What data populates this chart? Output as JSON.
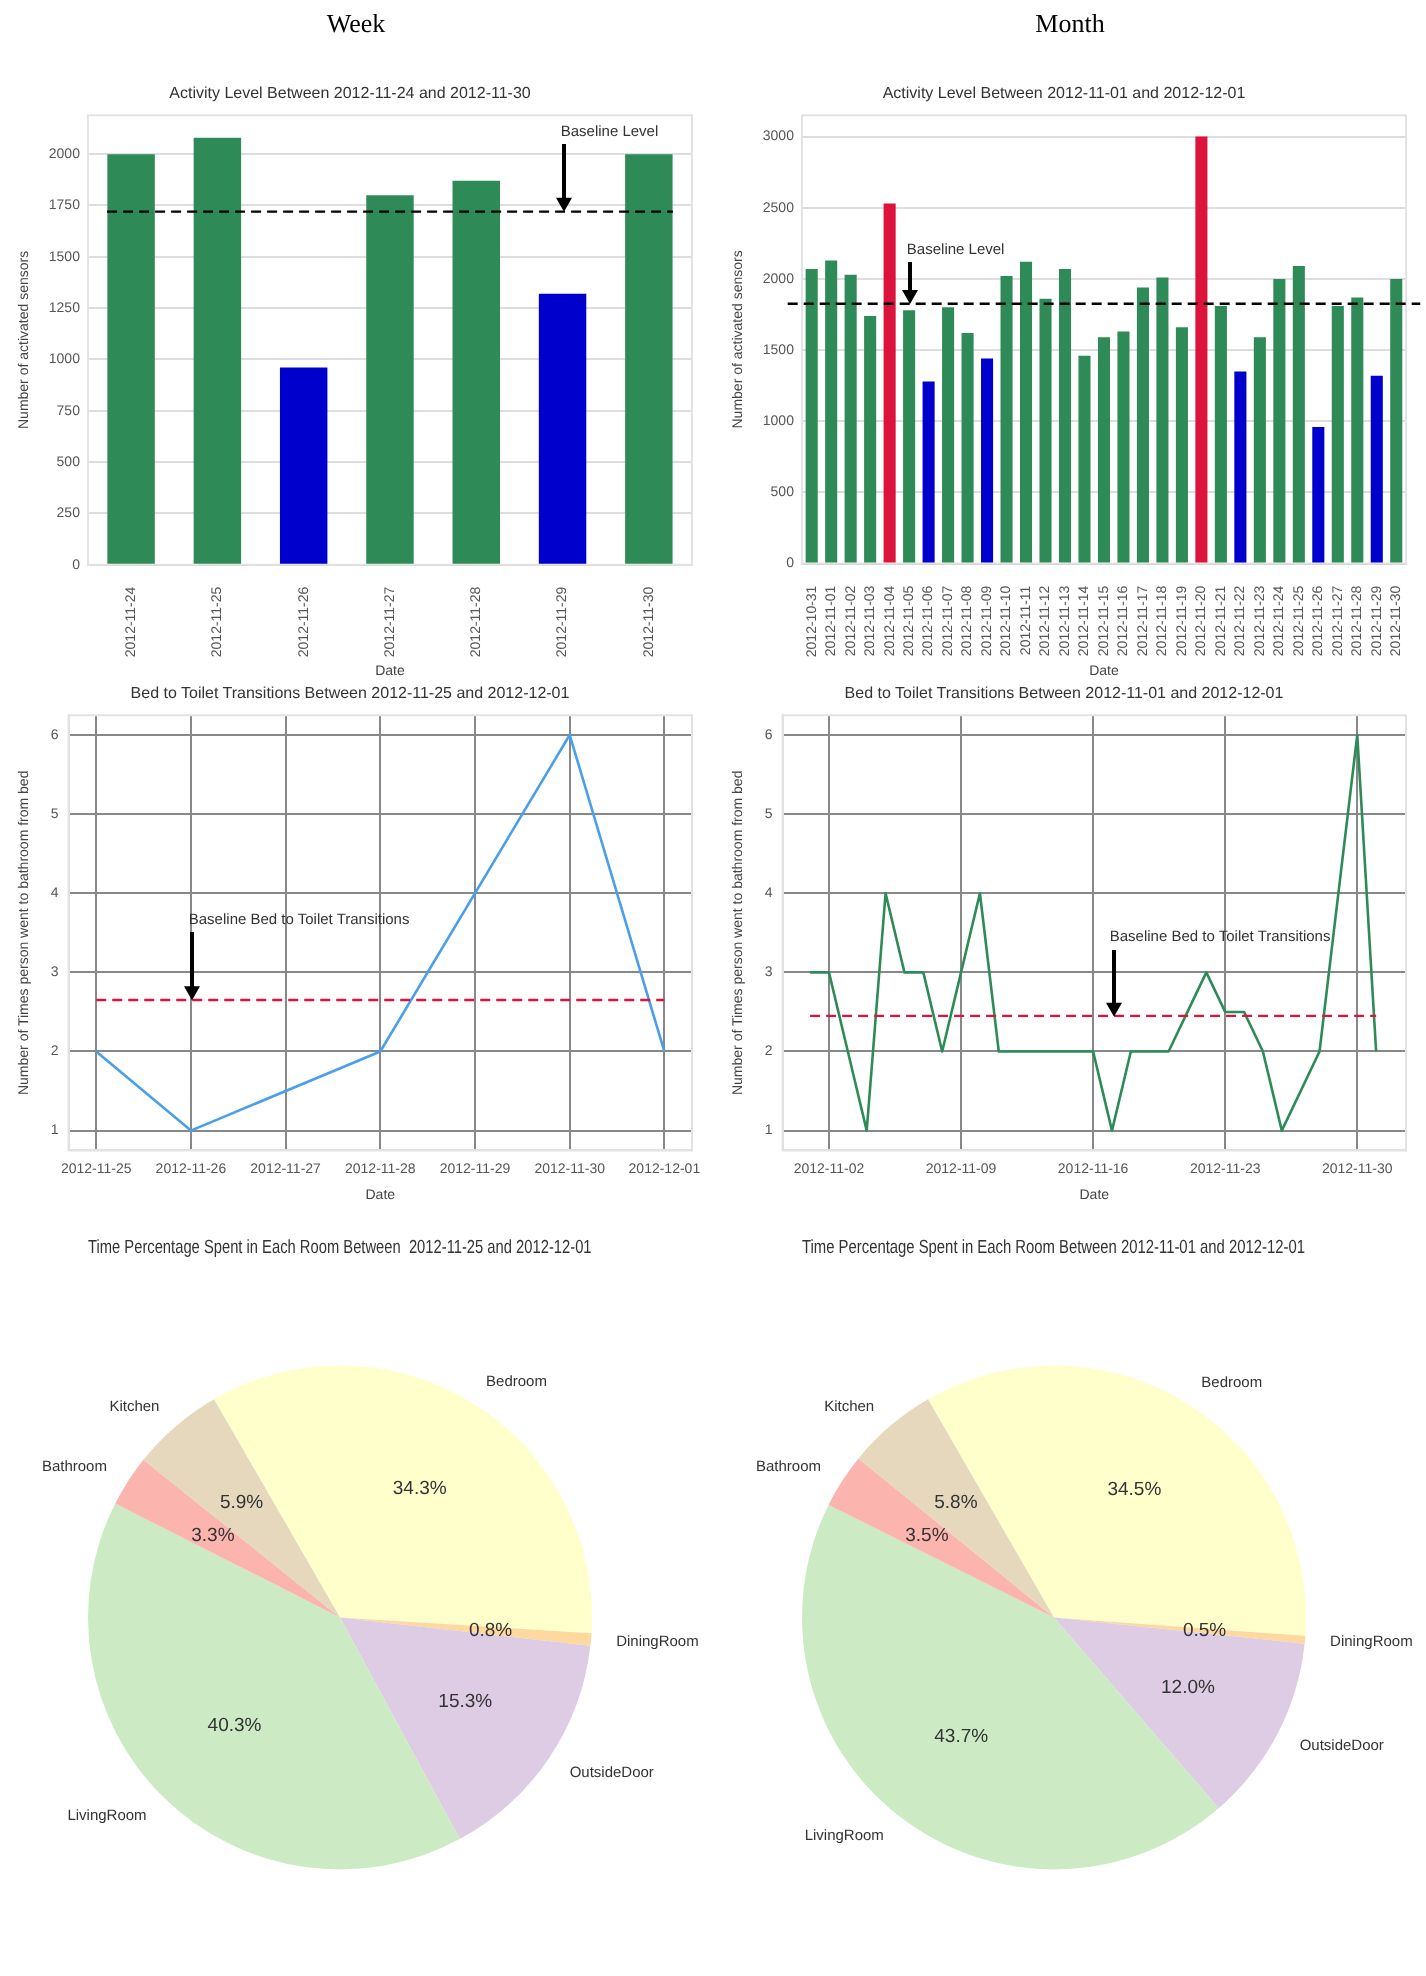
{
  "chart_data": [
    {
      "type": "bar",
      "title": "Activity Level Between 2012-11-24 and 2012-11-30",
      "xlabel": "Date",
      "ylabel": "Number of activated sensors",
      "annotations": [
        "Week",
        "Baseline Level"
      ],
      "categories": [
        "2012-11-24",
        "2012-11-25",
        "2012-11-26",
        "2012-11-27",
        "2012-11-28",
        "2012-11-29",
        "2012-11-30"
      ],
      "values": [
        2000,
        2080,
        960,
        1800,
        1870,
        1320,
        2000
      ],
      "colors": [
        "#2e8b57",
        "#2e8b57",
        "#0000cd",
        "#2e8b57",
        "#2e8b57",
        "#0000cd",
        "#2e8b57"
      ],
      "ylim": [
        0,
        2190
      ],
      "yticks": [
        0,
        250,
        500,
        750,
        1000,
        1250,
        1500,
        1750,
        2000
      ],
      "ref_lines": [
        {
          "axis": "y",
          "value": 1720,
          "color": "#000000",
          "line_style": "dashed"
        }
      ],
      "grid": "y"
    },
    {
      "type": "bar",
      "title": "Activity Level Between 2012-11-01 and 2012-12-01",
      "xlabel": "Date",
      "ylabel": "Number of activated sensors",
      "annotations": [
        "Month",
        "Baseline Level"
      ],
      "categories": [
        "2012-10-31",
        "2012-11-01",
        "2012-11-02",
        "2012-11-03",
        "2012-11-04",
        "2012-11-05",
        "2012-11-06",
        "2012-11-07",
        "2012-11-08",
        "2012-11-09",
        "2012-11-10",
        "2012-11-11",
        "2012-11-12",
        "2012-11-13",
        "2012-11-14",
        "2012-11-15",
        "2012-11-16",
        "2012-11-17",
        "2012-11-18",
        "2012-11-19",
        "2012-11-20",
        "2012-11-21",
        "2012-11-22",
        "2012-11-23",
        "2012-11-24",
        "2012-11-25",
        "2012-11-26",
        "2012-11-27",
        "2012-11-28",
        "2012-11-29",
        "2012-11-30"
      ],
      "values": [
        2070,
        2130,
        2030,
        1740,
        2530,
        1780,
        1280,
        1800,
        1620,
        1440,
        2020,
        2120,
        1860,
        2070,
        1460,
        1590,
        1630,
        1940,
        2010,
        1660,
        3000,
        1810,
        1350,
        1590,
        2000,
        2090,
        960,
        1810,
        1870,
        1320,
        2000
      ],
      "colors": [
        "#2e8b57",
        "#2e8b57",
        "#2e8b57",
        "#2e8b57",
        "#dc143c",
        "#2e8b57",
        "#0000cd",
        "#2e8b57",
        "#2e8b57",
        "#0000cd",
        "#2e8b57",
        "#2e8b57",
        "#2e8b57",
        "#2e8b57",
        "#2e8b57",
        "#2e8b57",
        "#2e8b57",
        "#2e8b57",
        "#2e8b57",
        "#2e8b57",
        "#dc143c",
        "#2e8b57",
        "#0000cd",
        "#2e8b57",
        "#2e8b57",
        "#2e8b57",
        "#0000cd",
        "#2e8b57",
        "#2e8b57",
        "#0000cd",
        "#2e8b57"
      ],
      "ylim": [
        0,
        3150
      ],
      "yticks": [
        0,
        500,
        1000,
        1500,
        2000,
        2500,
        3000
      ],
      "ref_lines": [
        {
          "axis": "y",
          "value": 1825,
          "color": "#000000",
          "line_style": "dashed"
        }
      ],
      "grid": "y"
    },
    {
      "type": "line",
      "title": "Bed to Toilet Transitions Between 2012-11-25 and 2012-12-01",
      "xlabel": "Date",
      "ylabel": "Number of Times person went to bathroom from bed",
      "x": [
        "2012-11-25",
        "2012-11-26",
        "2012-11-28",
        "2012-11-30",
        "2012-12-01"
      ],
      "values": [
        2,
        1,
        2,
        6,
        2
      ],
      "color": "#4a9fea",
      "xlim": [
        "2012-11-24T17:00",
        "2012-12-01T07:00"
      ],
      "xticks": [
        "2012-11-25",
        "2012-11-26",
        "2012-11-27",
        "2012-11-28",
        "2012-11-29",
        "2012-11-30",
        "2012-12-01"
      ],
      "ylim": [
        0.75,
        6.25
      ],
      "yticks": [
        1,
        2,
        3,
        4,
        5,
        6
      ],
      "annotations": [
        "Baseline Bed to Toilet Transitions"
      ],
      "ref_lines": [
        {
          "axis": "y",
          "value": 2.65,
          "color": "#dc143c",
          "line_style": "dashed"
        }
      ],
      "grid": true
    },
    {
      "type": "line",
      "title": "Bed to Toilet Transitions Between 2012-11-01 and 2012-12-01",
      "xlabel": "Date",
      "ylabel": "Number of Times person went to bathroom from bed",
      "x": [
        "2012-11-01",
        "2012-11-02",
        "2012-11-03",
        "2012-11-04",
        "2012-11-05",
        "2012-11-06",
        "2012-11-07",
        "2012-11-08",
        "2012-11-09",
        "2012-11-10",
        "2012-11-11",
        "2012-11-12",
        "2012-11-13",
        "2012-11-14",
        "2012-11-15",
        "2012-11-16",
        "2012-11-17",
        "2012-11-18",
        "2012-11-19",
        "2012-11-20",
        "2012-11-21",
        "2012-11-22",
        "2012-11-23",
        "2012-11-24",
        "2012-11-25",
        "2012-11-26",
        "2012-11-28",
        "2012-11-30",
        "2012-12-01"
      ],
      "values": [
        3,
        3,
        2,
        1,
        4,
        3,
        3,
        2,
        3,
        4,
        2,
        2,
        2,
        2,
        2,
        2,
        1,
        2,
        2,
        2,
        2.5,
        3,
        2.5,
        2.5,
        2,
        1,
        2,
        6,
        2
      ],
      "color": "#2e8b57",
      "xlim": [
        "2012-10-30T13:00",
        "2012-12-02T14:00"
      ],
      "xticks": [
        "2012-11-02",
        "2012-11-09",
        "2012-11-16",
        "2012-11-23",
        "2012-11-30"
      ],
      "ylim": [
        0.75,
        6.25
      ],
      "yticks": [
        1,
        2,
        3,
        4,
        5,
        6
      ],
      "annotations": [
        "Baseline Bed to Toilet Transitions"
      ],
      "ref_lines": [
        {
          "axis": "y",
          "value": 2.45,
          "color": "#dc143c",
          "line_style": "dashed"
        }
      ],
      "grid": true
    },
    {
      "type": "pie",
      "title": "Time Percentage Spent in Each Room Between  2012-11-25 and 2012-12-01",
      "categories": [
        "Bedroom",
        "DiningRoom",
        "OutsideDoor",
        "LivingRoom",
        "Bathroom",
        "Kitchen"
      ],
      "values": [
        34.3,
        0.8,
        15.3,
        40.3,
        3.3,
        5.9
      ],
      "value_labels": [
        "34.3%",
        "0.8%",
        "15.3%",
        "40.3%",
        "3.3%",
        "5.9%"
      ],
      "colors": [
        "#ffffcc",
        "#fdd9a0",
        "#decbe4",
        "#ccebc5",
        "#fbb4ae",
        "#e5d8bd"
      ]
    },
    {
      "type": "pie",
      "title": "Time Percentage Spent in Each Room Between 2012-11-01 and 2012-12-01",
      "categories": [
        "Bedroom",
        "DiningRoom",
        "OutsideDoor",
        "LivingRoom",
        "Bathroom",
        "Kitchen"
      ],
      "values": [
        34.5,
        0.5,
        12.0,
        43.7,
        3.5,
        5.8
      ],
      "value_labels": [
        "34.5%",
        "0.5%",
        "12.0%",
        "43.7%",
        "3.5%",
        "5.8%"
      ],
      "colors": [
        "#ffffcc",
        "#fdd9a0",
        "#decbe4",
        "#ccebc5",
        "#fbb4ae",
        "#e5d8bd"
      ]
    }
  ]
}
